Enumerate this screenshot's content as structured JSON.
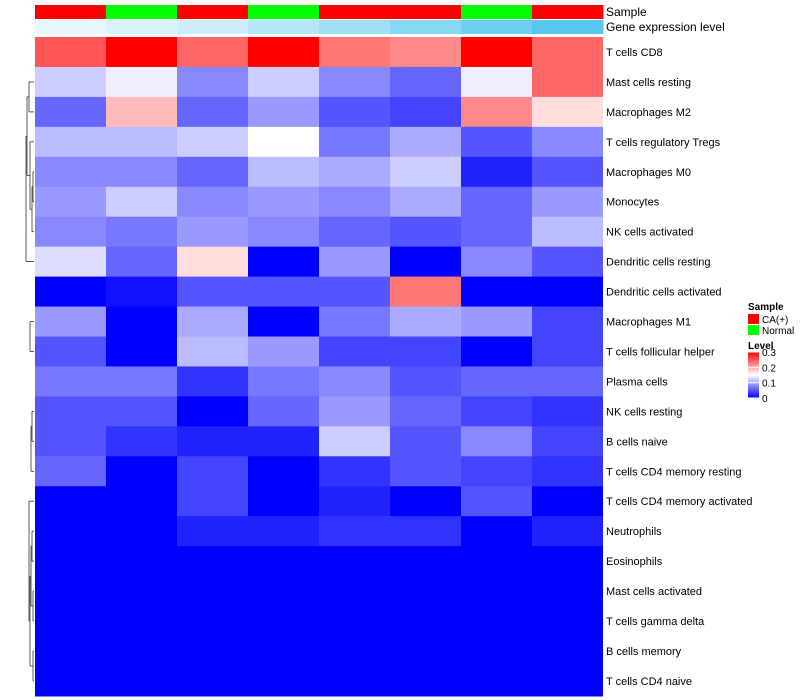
{
  "chart_data": {
    "type": "heatmap",
    "title": "",
    "value_range": [
      0,
      0.3
    ],
    "color_scale": {
      "low": "#0000ff",
      "mid": "#ffffff",
      "high": "#ff0000",
      "mid_value": 0.15
    },
    "annotations": {
      "sample_title": "Sample",
      "expr_title": "Gene expression level",
      "columns_sample": [
        "CA(+)",
        "Normal",
        "CA(+)",
        "Normal",
        "CA(+)",
        "CA(+)",
        "Normal",
        "CA(+)"
      ],
      "columns_expression": [
        0.02,
        0.03,
        0.04,
        0.06,
        0.08,
        0.1,
        0.12,
        0.14
      ],
      "expr_colors": {
        "low": "#ffffff",
        "high": "#56c8ee"
      }
    },
    "legend": {
      "sample": {
        "title": "Sample",
        "items": [
          {
            "label": "CA(+)",
            "color": "#ff0000"
          },
          {
            "label": "Normal",
            "color": "#00ff00"
          }
        ]
      },
      "level": {
        "title": "Level",
        "ticks": [
          "0.3",
          "0.2",
          "0.1",
          "0"
        ],
        "tick_values": [
          0.3,
          0.2,
          0.1,
          0
        ]
      }
    },
    "row_labels": [
      "T cells CD8",
      "Mast cells resting",
      "Macrophages M2",
      "T cells regulatory  Tregs",
      "Macrophages M0",
      "Monocytes",
      "NK cells activated",
      "Dendritic cells resting",
      "Dendritic cells activated",
      "Macrophages M1",
      "T cells follicular helper",
      "Plasma cells",
      "NK cells resting",
      "B cells naive",
      "T cells CD4 memory resting",
      "T cells CD4 memory activated",
      "Neutrophils",
      "Eosinophils",
      "Mast cells activated",
      "T cells gamma delta",
      "B cells memory",
      "T cells CD4 naive"
    ],
    "values": [
      [
        0.25,
        0.3,
        0.24,
        0.3,
        0.23,
        0.22,
        0.3,
        0.24
      ],
      [
        0.12,
        0.14,
        0.08,
        0.12,
        0.08,
        0.06,
        0.14,
        0.24
      ],
      [
        0.06,
        0.19,
        0.06,
        0.09,
        0.05,
        0.04,
        0.22,
        0.17
      ],
      [
        0.11,
        0.11,
        0.12,
        0.15,
        0.07,
        0.1,
        0.05,
        0.08
      ],
      [
        0.08,
        0.08,
        0.06,
        0.11,
        0.1,
        0.12,
        0.02,
        0.05
      ],
      [
        0.09,
        0.12,
        0.08,
        0.09,
        0.08,
        0.1,
        0.06,
        0.09
      ],
      [
        0.08,
        0.07,
        0.09,
        0.08,
        0.06,
        0.05,
        0.06,
        0.11
      ],
      [
        0.13,
        0.06,
        0.17,
        0.0,
        0.09,
        0.0,
        0.08,
        0.05
      ],
      [
        0.0,
        0.01,
        0.05,
        0.05,
        0.05,
        0.23,
        0.0,
        0.0
      ],
      [
        0.09,
        0.0,
        0.1,
        0.0,
        0.07,
        0.1,
        0.09,
        0.04
      ],
      [
        0.05,
        0.0,
        0.11,
        0.09,
        0.04,
        0.04,
        0.0,
        0.04
      ],
      [
        0.07,
        0.07,
        0.03,
        0.07,
        0.08,
        0.05,
        0.06,
        0.06
      ],
      [
        0.05,
        0.05,
        0.0,
        0.06,
        0.09,
        0.06,
        0.04,
        0.03
      ],
      [
        0.05,
        0.03,
        0.02,
        0.02,
        0.12,
        0.05,
        0.08,
        0.04
      ],
      [
        0.06,
        0.0,
        0.04,
        0.0,
        0.03,
        0.05,
        0.04,
        0.03
      ],
      [
        0.0,
        0.0,
        0.04,
        0.0,
        0.02,
        0.0,
        0.05,
        0.0
      ],
      [
        0.0,
        0.0,
        0.02,
        0.02,
        0.03,
        0.03,
        0.0,
        0.02
      ],
      [
        0.0,
        0.0,
        0.0,
        0.0,
        0.0,
        0.0,
        0.0,
        0.0
      ],
      [
        0.0,
        0.0,
        0.0,
        0.0,
        0.0,
        0.0,
        0.0,
        0.0
      ],
      [
        0.0,
        0.0,
        0.0,
        0.0,
        0.0,
        0.0,
        0.0,
        0.0
      ],
      [
        0.0,
        0.0,
        0.0,
        0.0,
        0.0,
        0.0,
        0.0,
        0.0
      ],
      [
        0.0,
        0.0,
        0.0,
        0.0,
        0.0,
        0.0,
        0.0,
        0.0
      ]
    ]
  }
}
